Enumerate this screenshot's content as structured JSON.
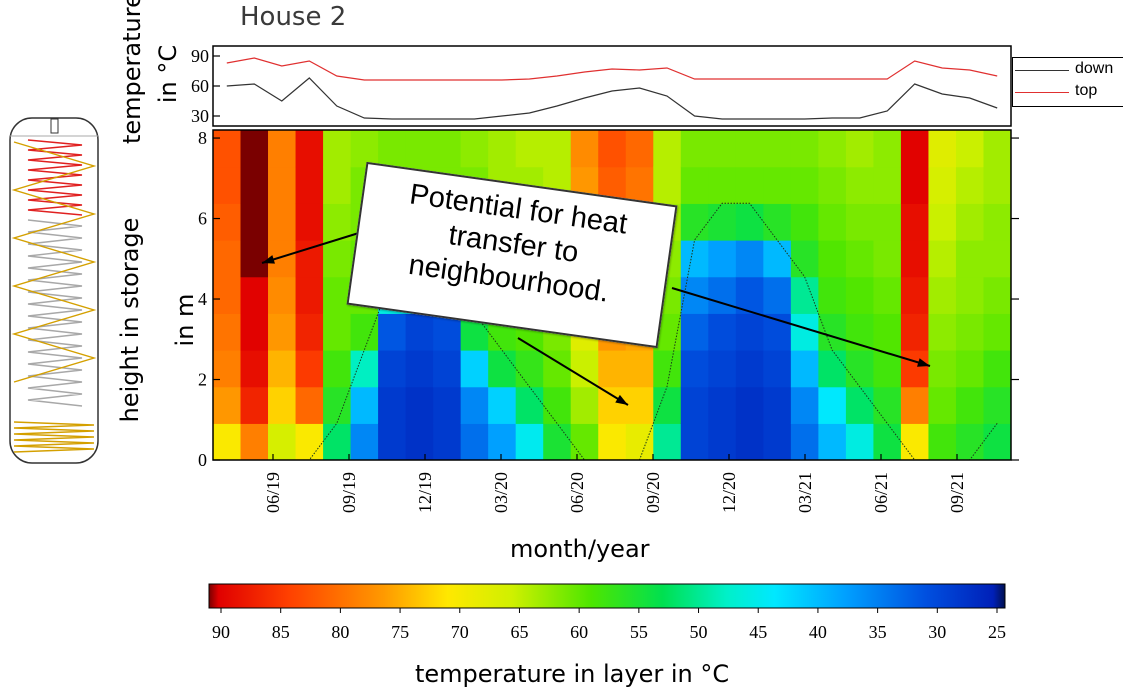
{
  "title": "House 2",
  "top_panel": {
    "ylabel_line1": "temperature",
    "ylabel_line2": "in °C",
    "yticks": [
      30,
      60,
      90
    ],
    "ylim": [
      20,
      100
    ],
    "legend": [
      {
        "label": "down",
        "color": "#333333"
      },
      {
        "label": "top",
        "color": "#e03030"
      }
    ]
  },
  "main_panel": {
    "ylabel_line1": "height in storage",
    "ylabel_line2": "in m",
    "yticks": [
      0,
      2,
      4,
      6,
      8
    ],
    "xlabel": "month/year",
    "xticks": [
      "06/19",
      "09/19",
      "12/19",
      "03/20",
      "06/20",
      "09/20",
      "12/20",
      "03/21",
      "06/21",
      "09/21"
    ]
  },
  "annotation": {
    "text": "Potential for heat transfer to neighbourhood."
  },
  "colorbar": {
    "label": "temperature in layer in °C",
    "ticks": [
      90,
      85,
      80,
      75,
      70,
      65,
      60,
      55,
      50,
      45,
      40,
      35,
      30,
      25
    ]
  },
  "chart_data": [
    {
      "type": "line",
      "title": "House 2",
      "ylabel": "temperature in °C",
      "ylim": [
        20,
        100
      ],
      "x": [
        "2019-05",
        "2019-06",
        "2019-07",
        "2019-08",
        "2019-09",
        "2019-10",
        "2019-11",
        "2019-12",
        "2020-01",
        "2020-02",
        "2020-03",
        "2020-04",
        "2020-05",
        "2020-06",
        "2020-07",
        "2020-08",
        "2020-09",
        "2020-10",
        "2020-11",
        "2020-12",
        "2021-01",
        "2021-02",
        "2021-03",
        "2021-04",
        "2021-05",
        "2021-06",
        "2021-07",
        "2021-08",
        "2021-09"
      ],
      "series": [
        {
          "name": "top",
          "values": [
            83,
            88,
            80,
            85,
            70,
            66,
            66,
            66,
            66,
            66,
            66,
            67,
            70,
            74,
            77,
            76,
            78,
            67,
            67,
            67,
            67,
            67,
            67,
            67,
            67,
            85,
            78,
            76,
            70
          ]
        },
        {
          "name": "down",
          "values": [
            60,
            62,
            45,
            68,
            40,
            28,
            27,
            27,
            27,
            27,
            30,
            33,
            40,
            48,
            55,
            58,
            50,
            30,
            27,
            27,
            27,
            27,
            28,
            28,
            35,
            62,
            52,
            48,
            38
          ]
        }
      ]
    },
    {
      "type": "heatmap",
      "xlabel": "month/year",
      "ylabel": "height in storage in m",
      "ylim": [
        0,
        8.2
      ],
      "x_ticks": [
        "06/19",
        "09/19",
        "12/19",
        "03/20",
        "06/20",
        "09/20",
        "12/20",
        "03/21",
        "06/21",
        "09/21"
      ],
      "colorbar_label": "temperature in layer in °C",
      "color_range": [
        90,
        25
      ],
      "columns": [
        {
          "period": "05/19",
          "temp_by_height": [
            70,
            76,
            78,
            79,
            80,
            80,
            81,
            82,
            82
          ]
        },
        {
          "period": "06/19",
          "temp_by_height": [
            78,
            86,
            88,
            89,
            89,
            90,
            90,
            90,
            90
          ]
        },
        {
          "period": "07/19",
          "temp_by_height": [
            66,
            72,
            74,
            76,
            77,
            78,
            78,
            78,
            78
          ]
        },
        {
          "period": "08/19",
          "temp_by_height": [
            70,
            80,
            84,
            86,
            87,
            87,
            88,
            88,
            88
          ]
        },
        {
          "period": "09/19",
          "temp_by_height": [
            52,
            56,
            58,
            60,
            60,
            61,
            62,
            63,
            63
          ]
        },
        {
          "period": "10/19",
          "temp_by_height": [
            36,
            40,
            48,
            58,
            60,
            60,
            61,
            61,
            62
          ]
        },
        {
          "period": "11/19",
          "temp_by_height": [
            29,
            29,
            30,
            32,
            46,
            58,
            60,
            61,
            61
          ]
        },
        {
          "period": "12/19",
          "temp_by_height": [
            28,
            28,
            29,
            30,
            45,
            58,
            60,
            61,
            61
          ]
        },
        {
          "period": "01/20",
          "temp_by_height": [
            29,
            29,
            30,
            31,
            46,
            58,
            60,
            61,
            61
          ]
        },
        {
          "period": "02/20",
          "temp_by_height": [
            34,
            36,
            42,
            54,
            58,
            60,
            61,
            61,
            62
          ]
        },
        {
          "period": "03/20",
          "temp_by_height": [
            38,
            42,
            54,
            58,
            60,
            61,
            62,
            63,
            63
          ]
        },
        {
          "period": "04/20",
          "temp_by_height": [
            45,
            52,
            57,
            59,
            60,
            61,
            62,
            63,
            64
          ]
        },
        {
          "period": "05/20",
          "temp_by_height": [
            55,
            58,
            60,
            61,
            62,
            62,
            63,
            64,
            64
          ]
        },
        {
          "period": "06/20",
          "temp_by_height": [
            60,
            63,
            65,
            67,
            70,
            72,
            74,
            76,
            77
          ]
        },
        {
          "period": "07/20",
          "temp_by_height": [
            70,
            72,
            74,
            76,
            77,
            79,
            80,
            81,
            82
          ]
        },
        {
          "period": "08/20",
          "temp_by_height": [
            68,
            72,
            74,
            75,
            76,
            77,
            78,
            79,
            80
          ]
        },
        {
          "period": "09/20",
          "temp_by_height": [
            50,
            54,
            58,
            60,
            61,
            62,
            63,
            64,
            64
          ]
        },
        {
          "period": "10/20",
          "temp_by_height": [
            30,
            30,
            31,
            33,
            36,
            40,
            56,
            60,
            61
          ]
        },
        {
          "period": "11/20",
          "temp_by_height": [
            29,
            29,
            30,
            31,
            34,
            38,
            55,
            60,
            61
          ]
        },
        {
          "period": "12/20",
          "temp_by_height": [
            28,
            28,
            29,
            30,
            32,
            36,
            54,
            60,
            61
          ]
        },
        {
          "period": "01/21",
          "temp_by_height": [
            29,
            29,
            30,
            31,
            34,
            40,
            56,
            60,
            61
          ]
        },
        {
          "period": "02/21",
          "temp_by_height": [
            34,
            36,
            40,
            46,
            50,
            56,
            58,
            60,
            61
          ]
        },
        {
          "period": "03/21",
          "temp_by_height": [
            40,
            44,
            52,
            56,
            58,
            59,
            60,
            61,
            62
          ]
        },
        {
          "period": "04/21",
          "temp_by_height": [
            46,
            52,
            56,
            58,
            59,
            60,
            61,
            62,
            63
          ]
        },
        {
          "period": "05/21",
          "temp_by_height": [
            54,
            56,
            58,
            59,
            60,
            61,
            61,
            62,
            62
          ]
        },
        {
          "period": "06/21",
          "temp_by_height": [
            70,
            78,
            84,
            86,
            87,
            88,
            88,
            89,
            89
          ]
        },
        {
          "period": "07/21",
          "temp_by_height": [
            58,
            60,
            61,
            62,
            63,
            64,
            65,
            66,
            67
          ]
        },
        {
          "period": "08/21",
          "temp_by_height": [
            56,
            58,
            60,
            61,
            62,
            62,
            63,
            64,
            65
          ]
        },
        {
          "period": "09/21",
          "temp_by_height": [
            54,
            56,
            58,
            60,
            61,
            62,
            62,
            63,
            63
          ]
        }
      ]
    }
  ]
}
